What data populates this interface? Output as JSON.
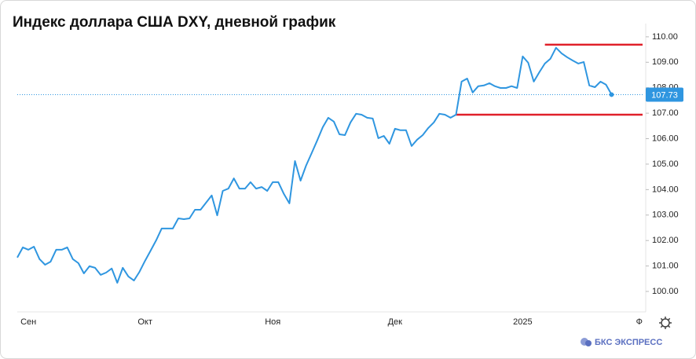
{
  "chart_data": {
    "type": "line",
    "title": "Индекс доллара США DXY, дневной график",
    "watermark": "БКС ЭКСПРЕСС",
    "color": "#2f96e0",
    "categories": [
      null,
      null,
      "Сен",
      null,
      null,
      null,
      null,
      null,
      null,
      null,
      null,
      null,
      null,
      null,
      null,
      null,
      null,
      null,
      null,
      null,
      null,
      null,
      null,
      "Окт",
      null,
      null,
      null,
      null,
      null,
      null,
      null,
      null,
      null,
      null,
      null,
      null,
      null,
      null,
      null,
      null,
      null,
      null,
      null,
      null,
      null,
      null,
      "Ноя",
      null,
      null,
      null,
      null,
      null,
      null,
      null,
      null,
      null,
      null,
      null,
      null,
      null,
      null,
      null,
      null,
      null,
      null,
      null,
      null,
      null,
      "Дек",
      null,
      null,
      null,
      null,
      null,
      null,
      null,
      null,
      null,
      null,
      null,
      null,
      null,
      null,
      null,
      null,
      null,
      null,
      null,
      null,
      null,
      null,
      "2025",
      null,
      null,
      null,
      null,
      null,
      null,
      null,
      null,
      null,
      null,
      null,
      null,
      null,
      null,
      null,
      null,
      null,
      null,
      null,
      null,
      "Ф"
    ],
    "values": [
      101.33,
      101.73,
      101.64,
      101.76,
      101.27,
      101.05,
      101.17,
      101.64,
      101.64,
      101.73,
      101.27,
      101.11,
      100.71,
      100.99,
      100.93,
      100.65,
      100.74,
      100.9,
      100.34,
      100.93,
      100.59,
      100.43,
      100.77,
      101.2,
      101.6,
      102.01,
      102.47,
      102.47,
      102.47,
      102.87,
      102.84,
      102.87,
      103.21,
      103.21,
      103.49,
      103.77,
      102.99,
      103.95,
      104.04,
      104.44,
      104.04,
      104.04,
      104.29,
      104.04,
      104.1,
      103.95,
      104.29,
      104.29,
      103.83,
      103.46,
      105.12,
      104.35,
      104.94,
      105.43,
      105.93,
      106.45,
      106.82,
      106.67,
      106.17,
      106.14,
      106.64,
      106.98,
      106.94,
      106.82,
      106.79,
      106.02,
      106.11,
      105.8,
      106.39,
      106.33,
      106.33,
      105.71,
      105.96,
      106.14,
      106.42,
      106.64,
      106.98,
      106.94,
      106.82,
      106.94,
      108.24,
      108.36,
      107.81,
      108.06,
      108.09,
      108.18,
      108.06,
      107.99,
      107.99,
      108.06,
      107.99,
      109.23,
      108.98,
      108.24,
      108.61,
      108.95,
      109.14,
      109.57,
      109.35,
      109.2,
      109.07,
      108.95,
      109.01,
      108.09,
      108.02,
      108.24,
      108.12,
      107.73,
      null,
      null,
      null,
      null,
      null
    ],
    "ylim": [
      99.26,
      110.52
    ],
    "yticks": [
      {
        "value": 100,
        "label": "100.00"
      },
      {
        "value": 101,
        "label": "101.00"
      },
      {
        "value": 102,
        "label": "102.00"
      },
      {
        "value": 103,
        "label": "103.00"
      },
      {
        "value": 104,
        "label": "104.00"
      },
      {
        "value": 105,
        "label": "105.00"
      },
      {
        "value": 106,
        "label": "106.00"
      },
      {
        "value": 107,
        "label": "107.00"
      },
      {
        "value": 108,
        "label": "108.00"
      },
      {
        "value": 109,
        "label": "109.00"
      },
      {
        "value": 110,
        "label": "110.00"
      }
    ],
    "reference_lines": [
      {
        "value": 109.69,
        "start": 95,
        "color": "#e0202a"
      },
      {
        "value": 106.94,
        "start": 79,
        "color": "#e0202a"
      }
    ]
  }
}
